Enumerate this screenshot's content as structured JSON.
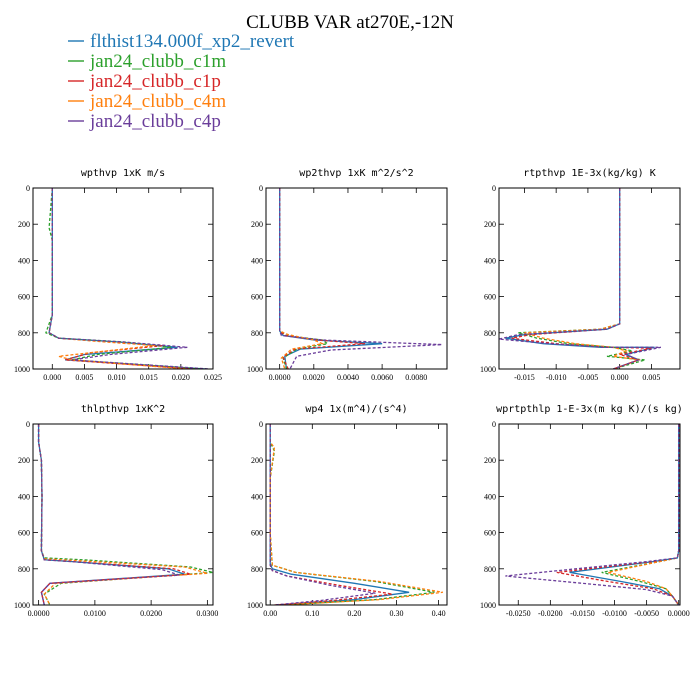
{
  "figure": {
    "title": "CLUBB VAR at270E,-12N"
  },
  "legend": [
    {
      "name": "flthist134.000f_xp2_revert",
      "color": "#1f77b4",
      "dash": "solid"
    },
    {
      "name": "jan24_clubb_c1m",
      "color": "#2ca02c",
      "dash": "dashed"
    },
    {
      "name": "jan24_clubb_c1p",
      "color": "#d62728",
      "dash": "dashed"
    },
    {
      "name": "jan24_clubb_c4m",
      "color": "#ff7f0e",
      "dash": "dashed"
    },
    {
      "name": "jan24_clubb_c4p",
      "color": "#6a3d9a",
      "dash": "dashed"
    }
  ],
  "chart_data": [
    {
      "type": "line",
      "title": "wpthvp  1xK m/s",
      "xlim": [
        -0.003,
        0.025
      ],
      "ylim": [
        1000,
        0
      ],
      "xticks": [
        "0.000",
        "0.005",
        "0.010",
        "0.015",
        "0.020",
        "0.025"
      ],
      "xtick_values": [
        0.0,
        0.005,
        0.01,
        0.015,
        0.02,
        0.025
      ],
      "yticks": [
        0,
        200,
        400,
        600,
        800,
        1000
      ],
      "series": [
        {
          "x": [
            0.0,
            0.0,
            0.0,
            0.0,
            -0.0005,
            0.001,
            0.01,
            0.0195,
            0.005,
            0.002,
            0.024
          ],
          "y": [
            0,
            200,
            400,
            700,
            800,
            830,
            850,
            880,
            920,
            950,
            1000
          ]
        },
        {
          "x": [
            0.0,
            -0.0005,
            0.0,
            0.0,
            0.0,
            -0.001,
            0.001,
            0.011,
            0.0185,
            0.007,
            0.003,
            0.023
          ],
          "y": [
            0,
            220,
            290,
            400,
            700,
            800,
            830,
            850,
            880,
            920,
            950,
            1000
          ]
        },
        {
          "x": [
            0.0,
            0.0,
            0.0,
            0.0,
            -0.0005,
            0.001,
            0.009,
            0.0175,
            0.006,
            0.002,
            0.022
          ],
          "y": [
            0,
            200,
            400,
            700,
            800,
            830,
            850,
            870,
            910,
            950,
            1000
          ]
        },
        {
          "x": [
            0.0,
            0.0,
            0.0,
            0.0,
            -0.0005,
            0.001,
            0.008,
            0.016,
            0.001,
            0.003,
            0.021
          ],
          "y": [
            0,
            200,
            400,
            700,
            800,
            830,
            850,
            870,
            930,
            950,
            1000
          ]
        },
        {
          "x": [
            0.0,
            0.0,
            0.0,
            0.0,
            -0.0005,
            0.001,
            0.011,
            0.021,
            0.009,
            0.003,
            0.0245
          ],
          "y": [
            0,
            200,
            400,
            700,
            800,
            830,
            850,
            880,
            920,
            950,
            1000
          ]
        }
      ]
    },
    {
      "type": "line",
      "title": "wp2thvp  1xK m^2/s^2",
      "xlim": [
        -0.0008,
        0.0098
      ],
      "ylim": [
        1000,
        0
      ],
      "xticks": [
        "0.0000",
        "0.0020",
        "0.0040",
        "0.0060",
        "0.0080"
      ],
      "xtick_values": [
        0.0,
        0.002,
        0.004,
        0.006,
        0.008
      ],
      "yticks": [
        0,
        200,
        400,
        600,
        800,
        1000
      ],
      "series": [
        {
          "x": [
            0.0,
            0.0,
            0.0,
            0.0,
            0.0002,
            0.002,
            0.006,
            0.0012,
            0.0003,
            0.0004
          ],
          "y": [
            0,
            400,
            700,
            790,
            815,
            840,
            860,
            890,
            930,
            1000
          ]
        },
        {
          "x": [
            0.0,
            0.0,
            0.0,
            0.0,
            0.0004,
            0.0025,
            0.0028,
            0.001,
            0.0002,
            0.0004
          ],
          "y": [
            0,
            400,
            700,
            790,
            815,
            840,
            860,
            890,
            940,
            1000
          ]
        },
        {
          "x": [
            0.0,
            0.0,
            0.0,
            0.0,
            0.0003,
            0.0022,
            0.005,
            0.0009,
            0.0002,
            0.0005
          ],
          "y": [
            0,
            400,
            700,
            790,
            815,
            840,
            860,
            890,
            935,
            1000
          ]
        },
        {
          "x": [
            0.0,
            0.0,
            0.0,
            0.0,
            0.0005,
            0.002,
            0.0025,
            0.0007,
            0.0001,
            0.0003
          ],
          "y": [
            0,
            400,
            700,
            790,
            810,
            840,
            860,
            890,
            940,
            1000
          ]
        },
        {
          "x": [
            0.0,
            0.0,
            0.0,
            0.0,
            0.0001,
            0.0025,
            0.0095,
            0.003,
            0.001,
            0.0006
          ],
          "y": [
            0,
            400,
            700,
            790,
            815,
            840,
            865,
            895,
            930,
            1000
          ]
        }
      ]
    },
    {
      "type": "line",
      "title": "rtpthvp  1E-3x(kg/kg) K",
      "xlim": [
        -0.019,
        0.0095
      ],
      "ylim": [
        1000,
        0
      ],
      "xticks": [
        "-0.015",
        "-0.010",
        "-0.005",
        "0.000",
        "0.005"
      ],
      "xtick_values": [
        -0.015,
        -0.01,
        -0.005,
        0.0,
        0.005
      ],
      "yticks": [
        0,
        200,
        400,
        600,
        800,
        1000
      ],
      "series": [
        {
          "x": [
            0.0,
            0.0,
            0.0,
            0.0,
            -0.002,
            -0.015,
            -0.018,
            -0.012,
            -0.003,
            0.0055,
            0.001,
            0.003,
            -0.001
          ],
          "y": [
            0,
            400,
            700,
            750,
            780,
            810,
            830,
            860,
            880,
            880,
            920,
            950,
            1000
          ]
        },
        {
          "x": [
            0.0,
            0.0,
            0.0,
            0.0,
            -0.003,
            -0.016,
            -0.013,
            -0.008,
            -0.001,
            0.002,
            -0.002,
            0.004,
            -0.001
          ],
          "y": [
            0,
            400,
            700,
            750,
            780,
            800,
            830,
            860,
            880,
            900,
            930,
            950,
            1000
          ]
        },
        {
          "x": [
            0.0,
            0.0,
            0.0,
            0.0,
            -0.002,
            -0.014,
            -0.017,
            -0.01,
            -0.002,
            0.005,
            0.0,
            0.003,
            -0.001
          ],
          "y": [
            0,
            400,
            700,
            750,
            780,
            810,
            830,
            860,
            880,
            885,
            920,
            950,
            1000
          ]
        },
        {
          "x": [
            0.0,
            0.0,
            0.0,
            0.0,
            -0.003,
            -0.015,
            -0.012,
            -0.007,
            -0.001,
            0.001,
            -0.001,
            0.003,
            -0.001
          ],
          "y": [
            0,
            400,
            700,
            750,
            780,
            800,
            830,
            860,
            880,
            900,
            930,
            950,
            1000
          ]
        },
        {
          "x": [
            0.0,
            0.0,
            0.0,
            0.0,
            -0.002,
            -0.016,
            -0.019,
            -0.011,
            -0.002,
            0.0065,
            0.001,
            0.003,
            -0.001
          ],
          "y": [
            0,
            400,
            700,
            750,
            780,
            810,
            835,
            860,
            880,
            880,
            920,
            950,
            1000
          ]
        }
      ]
    },
    {
      "type": "line",
      "title": "thlpthvp  1xK^2",
      "xlim": [
        -0.001,
        0.031
      ],
      "ylim": [
        1000,
        0
      ],
      "xticks": [
        "0.0000",
        "0.0100",
        "0.0200",
        "0.0300"
      ],
      "xtick_values": [
        0.0,
        0.01,
        0.02,
        0.03
      ],
      "yticks": [
        0,
        200,
        400,
        600,
        800,
        1000
      ],
      "series": [
        {
          "x": [
            0.0,
            0.0,
            0.0005,
            0.0006,
            0.0005,
            0.001,
            0.006,
            0.023,
            0.026,
            0.002,
            0.0005,
            0.001
          ],
          "y": [
            0,
            100,
            200,
            400,
            700,
            750,
            760,
            800,
            830,
            880,
            930,
            1000
          ]
        },
        {
          "x": [
            0.0,
            0.0,
            0.0005,
            0.0006,
            0.0005,
            0.001,
            0.008,
            0.027,
            0.031,
            0.004,
            0.001,
            0.002
          ],
          "y": [
            0,
            100,
            200,
            400,
            700,
            740,
            750,
            790,
            820,
            880,
            940,
            1000
          ]
        },
        {
          "x": [
            0.0,
            0.0,
            0.0005,
            0.0006,
            0.0005,
            0.001,
            0.006,
            0.024,
            0.027,
            0.002,
            0.0005,
            0.001
          ],
          "y": [
            0,
            100,
            200,
            400,
            700,
            750,
            760,
            800,
            830,
            880,
            930,
            1000
          ]
        },
        {
          "x": [
            0.0,
            0.0,
            0.0005,
            0.0006,
            0.0005,
            0.001,
            0.007,
            0.026,
            0.03,
            0.003,
            0.001,
            0.002
          ],
          "y": [
            0,
            100,
            200,
            400,
            700,
            745,
            755,
            790,
            825,
            880,
            940,
            1000
          ]
        },
        {
          "x": [
            0.0,
            0.0,
            0.0005,
            0.0006,
            0.0005,
            0.001,
            0.006,
            0.022,
            0.025,
            0.002,
            0.0005,
            0.001
          ],
          "y": [
            0,
            100,
            200,
            400,
            700,
            750,
            760,
            805,
            835,
            880,
            930,
            1000
          ]
        }
      ]
    },
    {
      "type": "line",
      "title": "wp4  1x(m^4)/(s^4)",
      "xlim": [
        -0.01,
        0.42
      ],
      "ylim": [
        1000,
        0
      ],
      "xticks": [
        "0.00",
        "0.10",
        "0.20",
        "0.30",
        "0.40"
      ],
      "xtick_values": [
        0.0,
        0.1,
        0.2,
        0.3,
        0.4
      ],
      "yticks": [
        0,
        200,
        400,
        600,
        800,
        1000
      ],
      "series": [
        {
          "x": [
            0.0,
            0.0,
            0.0,
            0.0,
            0.005,
            0.05,
            0.2,
            0.33,
            0.2,
            0.02
          ],
          "y": [
            0,
            300,
            600,
            770,
            800,
            830,
            880,
            930,
            970,
            1000
          ]
        },
        {
          "x": [
            0.0,
            0.0,
            0.01,
            0.0,
            0.0,
            0.005,
            0.06,
            0.25,
            0.39,
            0.25,
            0.03
          ],
          "y": [
            0,
            100,
            150,
            300,
            600,
            780,
            820,
            870,
            930,
            970,
            1000
          ]
        },
        {
          "x": [
            0.0,
            0.0,
            0.0,
            0.0,
            0.005,
            0.04,
            0.16,
            0.29,
            0.15,
            0.01
          ],
          "y": [
            0,
            300,
            600,
            780,
            810,
            840,
            890,
            940,
            975,
            1000
          ]
        },
        {
          "x": [
            0.0,
            0.0,
            0.01,
            0.0,
            0.0,
            0.005,
            0.06,
            0.26,
            0.41,
            0.26,
            0.03
          ],
          "y": [
            0,
            100,
            130,
            300,
            600,
            780,
            820,
            870,
            930,
            970,
            1000
          ]
        },
        {
          "x": [
            0.0,
            0.0,
            0.0,
            0.0,
            0.005,
            0.04,
            0.14,
            0.25,
            0.12,
            0.01
          ],
          "y": [
            0,
            300,
            600,
            780,
            810,
            840,
            890,
            935,
            975,
            1000
          ]
        }
      ]
    },
    {
      "type": "line",
      "title": "wprtpthlp  1-E-3x(m kg K)/(s kg)",
      "xlim": [
        -0.028,
        0.0002
      ],
      "ylim": [
        1000,
        0
      ],
      "xticks": [
        "-0.0250",
        "-0.0200",
        "-0.0150",
        "-0.0100",
        "-0.0050",
        "0.0000"
      ],
      "xtick_values": [
        -0.025,
        -0.02,
        -0.015,
        -0.01,
        -0.005,
        0.0
      ],
      "yticks": [
        0,
        200,
        400,
        600,
        800,
        1000
      ],
      "series": [
        {
          "x": [
            0.0,
            0.0,
            0.0,
            -0.0002,
            -0.004,
            -0.017,
            -0.009,
            -0.003,
            -0.001,
            0.0
          ],
          "y": [
            0,
            400,
            700,
            740,
            760,
            820,
            870,
            910,
            950,
            1000
          ]
        },
        {
          "x": [
            0.0,
            0.0,
            0.0,
            -0.0002,
            -0.003,
            -0.012,
            -0.006,
            -0.002,
            -0.001,
            0.0
          ],
          "y": [
            0,
            400,
            700,
            740,
            760,
            820,
            870,
            910,
            950,
            1000
          ]
        },
        {
          "x": [
            0.0,
            0.0,
            0.0,
            -0.0002,
            -0.004,
            -0.019,
            -0.011,
            -0.004,
            -0.001,
            0.0
          ],
          "y": [
            0,
            400,
            700,
            740,
            760,
            820,
            870,
            910,
            950,
            1000
          ]
        },
        {
          "x": [
            0.0,
            0.0,
            0.0,
            -0.0002,
            -0.003,
            -0.011,
            -0.005,
            -0.002,
            -0.001,
            0.0
          ],
          "y": [
            0,
            400,
            700,
            740,
            760,
            820,
            870,
            910,
            950,
            1000
          ]
        },
        {
          "x": [
            0.0,
            0.0,
            0.0,
            -0.0002,
            -0.005,
            -0.027,
            -0.015,
            -0.005,
            -0.001,
            0.0
          ],
          "y": [
            0,
            400,
            700,
            740,
            760,
            840,
            880,
            915,
            950,
            1000
          ]
        }
      ]
    }
  ]
}
